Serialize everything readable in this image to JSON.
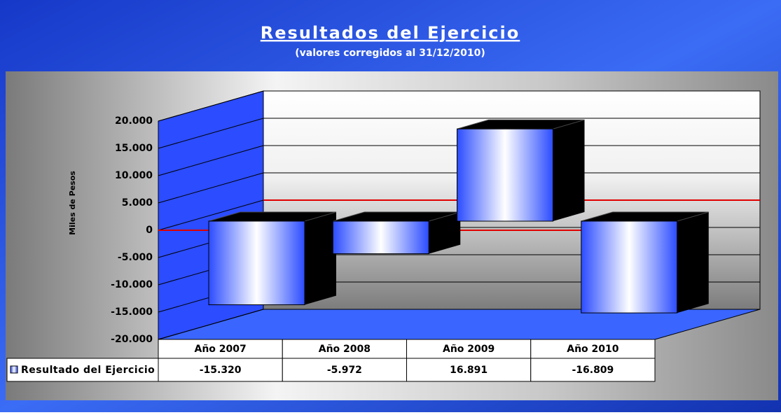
{
  "chart_data": {
    "type": "bar3d",
    "title": "Resultados del Ejercicio",
    "subtitle": "(valores corregidos al 31/12/2010)",
    "y_label": "Miles de Pesos",
    "categories": [
      "Año 2007",
      "Año 2008",
      "Año 2009",
      "Año 2010"
    ],
    "series": [
      {
        "name": "Resultado del Ejercicio",
        "color": "#2b4cff",
        "values": [
          -15320,
          -5972,
          16891,
          -16809
        ],
        "value_labels": [
          "-15.320",
          "-5.972",
          "16.891",
          "-16.809"
        ]
      }
    ],
    "ylim": [
      -20000,
      20000
    ],
    "yticks": [
      {
        "value": -20000,
        "label": "-20.000"
      },
      {
        "value": -15000,
        "label": "-15.000"
      },
      {
        "value": -10000,
        "label": "-10.000"
      },
      {
        "value": -5000,
        "label": "-5.000"
      },
      0,
      {
        "value": 5000,
        "label": "5.000"
      },
      {
        "value": 10000,
        "label": "10.000"
      },
      {
        "value": 15000,
        "label": "15.000"
      },
      {
        "value": 20000,
        "label": "20.000"
      }
    ],
    "grid": true
  }
}
